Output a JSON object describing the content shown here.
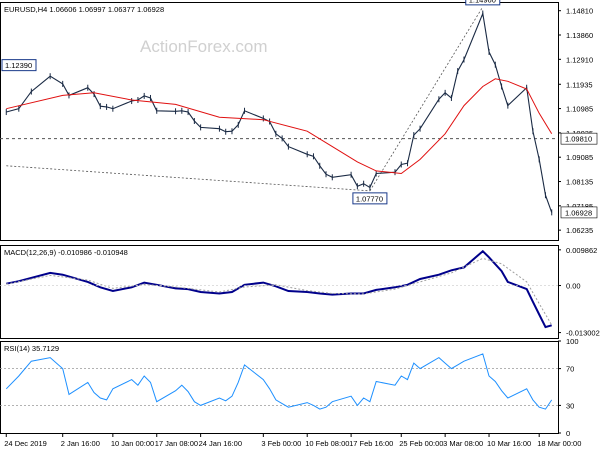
{
  "chart_data": [
    {
      "type": "candlestick",
      "title": "EURUSD,H4 1.06606 1.06997 1.06377 1.06928",
      "watermark": "ActionForex.com",
      "ylim": [
        1.0585,
        1.1515
      ],
      "y_ticks": [
        {
          "value": 1.1481,
          "label": "1.14810"
        },
        {
          "value": 1.1386,
          "label": "1.13860"
        },
        {
          "value": 1.1291,
          "label": "1.12910"
        },
        {
          "value": 1.11935,
          "label": "1.11935"
        },
        {
          "value": 1.10985,
          "label": "1.10985"
        },
        {
          "value": 1.10035,
          "label": "1.10035"
        },
        {
          "value": 1.09085,
          "label": "1.09085"
        },
        {
          "value": 1.08135,
          "label": "1.08135"
        },
        {
          "value": 1.07185,
          "label": "1.07185"
        },
        {
          "value": 1.06235,
          "label": "1.06235"
        }
      ],
      "price_tags": [
        {
          "value": 1.0981,
          "label": "1.09810",
          "color": "#000000",
          "background": "#ffffff"
        },
        {
          "value": 1.06928,
          "label": "1.06928",
          "color": "#000000",
          "background": "#ffffff"
        }
      ],
      "annotations": [
        {
          "label": "1.12390",
          "date": "24 Dec 2019",
          "value": 1.1239
        },
        {
          "label": "1.07770",
          "date": "20 Feb 2020",
          "value": 1.0777
        },
        {
          "label": "1.14960",
          "date": "9 Mar 2020",
          "value": 1.1496
        }
      ],
      "horizontal_line": 1.0981,
      "trend_lines": [
        {
          "points": [
            [
              "24 Dec 2019",
              1.0875
            ],
            [
              "20 Feb 2020",
              1.0777
            ]
          ]
        },
        {
          "points": [
            [
              "20 Feb 2020",
              1.0777
            ],
            [
              "9 Mar 2020",
              1.1496
            ]
          ]
        }
      ],
      "price_series": [
        [
          "24 Dec 2019",
          1.1085
        ],
        [
          "26 Dec 2019",
          1.1098
        ],
        [
          "28 Dec 2019",
          1.1165
        ],
        [
          "31 Dec 2019",
          1.1225
        ],
        [
          "2 Jan 2020",
          1.1195
        ],
        [
          "3 Jan 2020",
          1.115
        ],
        [
          "6 Jan 2020",
          1.118
        ],
        [
          "7 Jan 2020",
          1.1155
        ],
        [
          "8 Jan 2020",
          1.1108
        ],
        [
          "9 Jan 2020",
          1.1105
        ],
        [
          "10 Jan 2020",
          1.1098
        ],
        [
          "13 Jan 2020",
          1.1128
        ],
        [
          "14 Jan 2020",
          1.1132
        ],
        [
          "15 Jan 2020",
          1.1148
        ],
        [
          "16 Jan 2020",
          1.114
        ],
        [
          "17 Jan 2020",
          1.109
        ],
        [
          "20 Jan 2020",
          1.1088
        ],
        [
          "21 Jan 2020",
          1.109
        ],
        [
          "22 Jan 2020",
          1.1085
        ],
        [
          "23 Jan 2020",
          1.105
        ],
        [
          "24 Jan 2020",
          1.1025
        ],
        [
          "27 Jan 2020",
          1.102
        ],
        [
          "28 Jan 2020",
          1.1008
        ],
        [
          "29 Jan 2020",
          1.101
        ],
        [
          "30 Jan 2020",
          1.1035
        ],
        [
          "31 Jan 2020",
          1.109
        ],
        [
          "3 Feb 2020",
          1.106
        ],
        [
          "4 Feb 2020",
          1.1048
        ],
        [
          "5 Feb 2020",
          1.1
        ],
        [
          "6 Feb 2020",
          1.0982
        ],
        [
          "7 Feb 2020",
          1.095
        ],
        [
          "10 Feb 2020",
          1.092
        ],
        [
          "11 Feb 2020",
          1.0912
        ],
        [
          "12 Feb 2020",
          1.0875
        ],
        [
          "13 Feb 2020",
          1.0842
        ],
        [
          "14 Feb 2020",
          1.083
        ],
        [
          "17 Feb 2020",
          1.084
        ],
        [
          "18 Feb 2020",
          1.0795
        ],
        [
          "19 Feb 2020",
          1.0805
        ],
        [
          "20 Feb 2020",
          1.079
        ],
        [
          "21 Feb 2020",
          1.0845
        ],
        [
          "24 Feb 2020",
          1.085
        ],
        [
          "25 Feb 2020",
          1.088
        ],
        [
          "26 Feb 2020",
          1.0885
        ],
        [
          "27 Feb 2020",
          1.0995
        ],
        [
          "28 Feb 2020",
          1.102
        ],
        [
          "2 Mar 2020",
          1.1135
        ],
        [
          "3 Mar 2020",
          1.116
        ],
        [
          "4 Mar 2020",
          1.114
        ],
        [
          "5 Mar 2020",
          1.1245
        ],
        [
          "6 Mar 2020",
          1.129
        ],
        [
          "9 Mar 2020",
          1.147
        ],
        [
          "10 Mar 2020",
          1.132
        ],
        [
          "11 Mar 2020",
          1.127
        ],
        [
          "12 Mar 2020",
          1.1185
        ],
        [
          "13 Mar 2020",
          1.111
        ],
        [
          "16 Mar 2020",
          1.118
        ],
        [
          "17 Mar 2020",
          1.101
        ],
        [
          "18 Mar 2020",
          1.09
        ],
        [
          "19 Mar 2020",
          1.076
        ],
        [
          "20 Mar 2020",
          1.0693
        ]
      ],
      "ma_series": {
        "color": "#e01010",
        "points": [
          [
            "24 Dec 2019",
            1.1098
          ],
          [
            "2 Jan 2020",
            1.115
          ],
          [
            "7 Jan 2020",
            1.116
          ],
          [
            "13 Jan 2020",
            1.1132
          ],
          [
            "20 Jan 2020",
            1.1115
          ],
          [
            "27 Jan 2020",
            1.1065
          ],
          [
            "3 Feb 2020",
            1.1055
          ],
          [
            "10 Feb 2020",
            1.101
          ],
          [
            "14 Feb 2020",
            1.095
          ],
          [
            "18 Feb 2020",
            1.089
          ],
          [
            "21 Feb 2020",
            1.0855
          ],
          [
            "25 Feb 2020",
            1.0845
          ],
          [
            "28 Feb 2020",
            1.09
          ],
          [
            "3 Mar 2020",
            1.1
          ],
          [
            "6 Mar 2020",
            1.111
          ],
          [
            "9 Mar 2020",
            1.1185
          ],
          [
            "11 Mar 2020",
            1.1215
          ],
          [
            "13 Mar 2020",
            1.1205
          ],
          [
            "16 Mar 2020",
            1.1175
          ],
          [
            "18 Mar 2020",
            1.108
          ],
          [
            "20 Mar 2020",
            1.1
          ]
        ]
      }
    },
    {
      "type": "line",
      "title": "MACD(12,26,9) -0.010986 -0.010948",
      "ylim": [
        -0.0145,
        0.0112
      ],
      "y_ticks": [
        {
          "value": 0.009862,
          "label": "0.009862"
        },
        {
          "value": 0.0,
          "label": "0.00"
        },
        {
          "value": -0.013002,
          "label": "-0.013002"
        }
      ],
      "series": [
        {
          "color": "#00008b",
          "values": [
            [
              "24 Dec 2019",
              0.0005
            ],
            [
              "26 Dec 2019",
              0.0012
            ],
            [
              "31 Dec 2019",
              0.0035
            ],
            [
              "2 Jan 2020",
              0.003
            ],
            [
              "6 Jan 2020",
              0.001
            ],
            [
              "8 Jan 2020",
              -0.0005
            ],
            [
              "10 Jan 2020",
              -0.0015
            ],
            [
              "13 Jan 2020",
              -0.0005
            ],
            [
              "15 Jan 2020",
              0.0008
            ],
            [
              "17 Jan 2020",
              0.0002
            ],
            [
              "20 Jan 2020",
              -0.0008
            ],
            [
              "22 Jan 2020",
              -0.001
            ],
            [
              "24 Jan 2020",
              -0.0018
            ],
            [
              "27 Jan 2020",
              -0.0022
            ],
            [
              "29 Jan 2020",
              -0.0018
            ],
            [
              "31 Jan 2020",
              0.0002
            ],
            [
              "3 Feb 2020",
              0.0008
            ],
            [
              "5 Feb 2020",
              -0.0002
            ],
            [
              "7 Feb 2020",
              -0.0015
            ],
            [
              "10 Feb 2020",
              -0.0018
            ],
            [
              "12 Feb 2020",
              -0.0022
            ],
            [
              "14 Feb 2020",
              -0.0025
            ],
            [
              "17 Feb 2020",
              -0.0022
            ],
            [
              "19 Feb 2020",
              -0.0022
            ],
            [
              "21 Feb 2020",
              -0.0012
            ],
            [
              "24 Feb 2020",
              -0.0005
            ],
            [
              "26 Feb 2020",
              0.0002
            ],
            [
              "28 Feb 2020",
              0.0018
            ],
            [
              "2 Mar 2020",
              0.003
            ],
            [
              "4 Mar 2020",
              0.0042
            ],
            [
              "6 Mar 2020",
              0.005
            ],
            [
              "9 Mar 2020",
              0.0095
            ],
            [
              "10 Mar 2020",
              0.0078
            ],
            [
              "12 Mar 2020",
              0.004
            ],
            [
              "13 Mar 2020",
              0.001
            ],
            [
              "16 Mar 2020",
              -0.001
            ],
            [
              "17 Mar 2020",
              -0.0045
            ],
            [
              "18 Mar 2020",
              -0.008
            ],
            [
              "19 Mar 2020",
              -0.0115
            ],
            [
              "20 Mar 2020",
              -0.011
            ]
          ]
        },
        {
          "color": "#a0a0a0",
          "values": [
            [
              "24 Dec 2019",
              0.0004
            ],
            [
              "31 Dec 2019",
              0.0028
            ],
            [
              "6 Jan 2020",
              0.0015
            ],
            [
              "10 Jan 2020",
              -0.0008
            ],
            [
              "15 Jan 2020",
              0.0003
            ],
            [
              "20 Jan 2020",
              -0.0004
            ],
            [
              "27 Jan 2020",
              -0.0018
            ],
            [
              "31 Jan 2020",
              -0.0004
            ],
            [
              "5 Feb 2020",
              0.0002
            ],
            [
              "10 Feb 2020",
              -0.0014
            ],
            [
              "14 Feb 2020",
              -0.0022
            ],
            [
              "19 Feb 2020",
              -0.0023
            ],
            [
              "24 Feb 2020",
              -0.001
            ],
            [
              "28 Feb 2020",
              0.001
            ],
            [
              "4 Mar 2020",
              0.0035
            ],
            [
              "9 Mar 2020",
              0.0075
            ],
            [
              "12 Mar 2020",
              0.006
            ],
            [
              "16 Mar 2020",
              0.001
            ],
            [
              "18 Mar 2020",
              -0.005
            ],
            [
              "20 Mar 2020",
              -0.0109
            ]
          ]
        }
      ]
    },
    {
      "type": "line",
      "title": "RSI(14) 35.7129",
      "ylim": [
        0,
        100
      ],
      "y_ticks": [
        {
          "value": 100,
          "label": "100"
        },
        {
          "value": 70,
          "label": "70"
        },
        {
          "value": 30,
          "label": "30"
        },
        {
          "value": 0,
          "label": "0"
        }
      ],
      "levels": [
        70,
        30
      ],
      "series": [
        {
          "color": "#1e90ff",
          "values": [
            [
              "24 Dec 2019",
              48
            ],
            [
              "26 Dec 2019",
              62
            ],
            [
              "28 Dec 2019",
              78
            ],
            [
              "31 Dec 2019",
              82
            ],
            [
              "2 Jan 2020",
              70
            ],
            [
              "3 Jan 2020",
              42
            ],
            [
              "6 Jan 2020",
              55
            ],
            [
              "7 Jan 2020",
              44
            ],
            [
              "8 Jan 2020",
              38
            ],
            [
              "9 Jan 2020",
              36
            ],
            [
              "10 Jan 2020",
              48
            ],
            [
              "13 Jan 2020",
              58
            ],
            [
              "14 Jan 2020",
              52
            ],
            [
              "15 Jan 2020",
              62
            ],
            [
              "16 Jan 2020",
              55
            ],
            [
              "17 Jan 2020",
              34
            ],
            [
              "20 Jan 2020",
              46
            ],
            [
              "21 Jan 2020",
              52
            ],
            [
              "22 Jan 2020",
              45
            ],
            [
              "23 Jan 2020",
              34
            ],
            [
              "24 Jan 2020",
              30
            ],
            [
              "27 Jan 2020",
              38
            ],
            [
              "28 Jan 2020",
              35
            ],
            [
              "29 Jan 2020",
              40
            ],
            [
              "30 Jan 2020",
              55
            ],
            [
              "31 Jan 2020",
              74
            ],
            [
              "3 Feb 2020",
              58
            ],
            [
              "4 Feb 2020",
              48
            ],
            [
              "5 Feb 2020",
              36
            ],
            [
              "6 Feb 2020",
              32
            ],
            [
              "7 Feb 2020",
              28
            ],
            [
              "10 Feb 2020",
              33
            ],
            [
              "11 Feb 2020",
              30
            ],
            [
              "12 Feb 2020",
              26
            ],
            [
              "13 Feb 2020",
              28
            ],
            [
              "14 Feb 2020",
              34
            ],
            [
              "17 Feb 2020",
              40
            ],
            [
              "18 Feb 2020",
              30
            ],
            [
              "19 Feb 2020",
              38
            ],
            [
              "20 Feb 2020",
              34
            ],
            [
              "21 Feb 2020",
              56
            ],
            [
              "24 Feb 2020",
              52
            ],
            [
              "25 Feb 2020",
              62
            ],
            [
              "26 Feb 2020",
              58
            ],
            [
              "27 Feb 2020",
              76
            ],
            [
              "28 Feb 2020",
              70
            ],
            [
              "2 Mar 2020",
              82
            ],
            [
              "3 Mar 2020",
              76
            ],
            [
              "4 Mar 2020",
              70
            ],
            [
              "5 Mar 2020",
              74
            ],
            [
              "6 Mar 2020",
              78
            ],
            [
              "9 Mar 2020",
              86
            ],
            [
              "10 Mar 2020",
              62
            ],
            [
              "11 Mar 2020",
              56
            ],
            [
              "12 Mar 2020",
              46
            ],
            [
              "13 Mar 2020",
              38
            ],
            [
              "16 Mar 2020",
              48
            ],
            [
              "17 Mar 2020",
              36
            ],
            [
              "18 Mar 2020",
              28
            ],
            [
              "19 Mar 2020",
              26
            ],
            [
              "20 Mar 2020",
              36
            ]
          ]
        }
      ]
    }
  ],
  "x_axis": {
    "start": "23 Dec 2019",
    "end": "21 Mar 2020",
    "ticks": [
      {
        "date": "24 Dec 2019",
        "label": "24 Dec 2019"
      },
      {
        "date": "2 Jan 2020",
        "label": "2 Jan 16:00"
      },
      {
        "date": "10 Jan 2020",
        "label": "10 Jan 00:00"
      },
      {
        "date": "17 Jan 2020",
        "label": "17 Jan 08:00"
      },
      {
        "date": "24 Jan 2020",
        "label": "24 Jan 16:00"
      },
      {
        "date": "3 Feb 2020",
        "label": "3 Feb 00:00"
      },
      {
        "date": "10 Feb 2020",
        "label": "10 Feb 08:00"
      },
      {
        "date": "17 Feb 2020",
        "label": "17 Feb 16:00"
      },
      {
        "date": "25 Feb 2020",
        "label": "25 Feb 00:00"
      },
      {
        "date": "3 Mar 2020",
        "label": "3 Mar 08:00"
      },
      {
        "date": "10 Mar 2020",
        "label": "10 Mar 16:00"
      },
      {
        "date": "18 Mar 2020",
        "label": "18 Mar 00:00"
      }
    ]
  }
}
